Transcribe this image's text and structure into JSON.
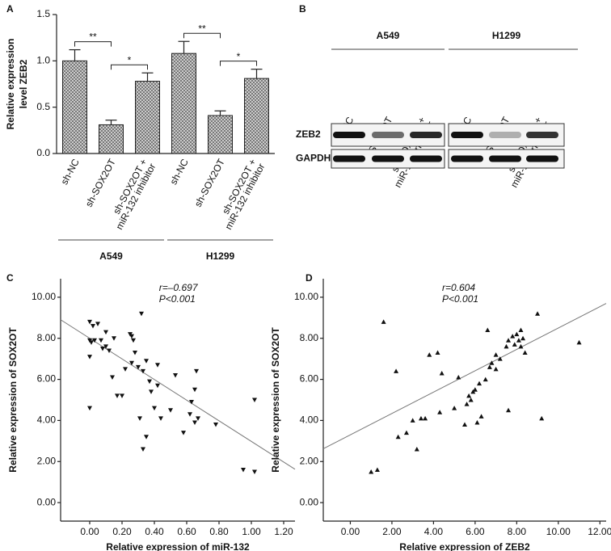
{
  "chart_data": [
    {
      "type": "bar",
      "panel_label": "A",
      "ylabel": [
        "Relative expression",
        "level ZEB2"
      ],
      "categories": [
        [
          "sh-NC"
        ],
        [
          "sh-SOX2OT"
        ],
        [
          "sh-SOX2OT +",
          "miR-132 inhibitor"
        ],
        [
          "sh-NC"
        ],
        [
          "sh-SOX2OT"
        ],
        [
          "sh-SOX2OT +",
          "miR-132 inhibitor"
        ]
      ],
      "groups": [
        "A549",
        "H1299"
      ],
      "values": [
        1.0,
        0.31,
        0.78,
        1.08,
        0.41,
        0.81
      ],
      "error": [
        0.12,
        0.05,
        0.09,
        0.13,
        0.05,
        0.1
      ],
      "brackets": [
        {
          "text": "**",
          "pair": [
            0,
            1
          ]
        },
        {
          "text": "*",
          "pair": [
            1,
            2
          ]
        },
        {
          "text": "**",
          "pair": [
            3,
            4
          ]
        },
        {
          "text": "*",
          "pair": [
            4,
            5
          ]
        }
      ],
      "color": "#bbbbbb",
      "ylim": [
        0,
        1.5
      ],
      "yticks": [
        {
          "value": 0,
          "label": "0.0"
        },
        0.5,
        {
          "value": 1,
          "label": "1.0"
        },
        1.5
      ]
    },
    {
      "type": "scatter",
      "panel_label": "C",
      "marker": "triangle-down",
      "color": "#111111",
      "xlabel": "Relative expression of miR-132",
      "ylabel": "Relative expression of SOX2OT",
      "annotations": [
        "r=–0.697",
        "P<0.001"
      ],
      "x": [
        0.0,
        0.02,
        0.05,
        0.0,
        0.01,
        0.03,
        0.0,
        0.0,
        0.07,
        0.08,
        0.1,
        0.12,
        0.1,
        0.15,
        0.14,
        0.17,
        0.2,
        0.22,
        0.25,
        0.26,
        0.27,
        0.28,
        0.26,
        0.3,
        0.32,
        0.33,
        0.35,
        0.37,
        0.38,
        0.42,
        0.42,
        0.4,
        0.44,
        0.31,
        0.33,
        0.35,
        0.5,
        0.53,
        0.58,
        0.62,
        0.63,
        0.65,
        0.66,
        0.67,
        0.65,
        0.78,
        0.95,
        1.02,
        1.02
      ],
      "y": [
        8.8,
        8.6,
        8.7,
        7.9,
        7.8,
        7.9,
        7.1,
        4.6,
        7.9,
        7.5,
        7.6,
        7.4,
        8.3,
        8.0,
        6.1,
        5.2,
        5.2,
        6.5,
        8.2,
        8.1,
        7.9,
        7.3,
        6.8,
        6.6,
        9.2,
        6.4,
        6.9,
        5.9,
        5.4,
        5.7,
        6.7,
        4.6,
        4.1,
        4.1,
        2.6,
        3.2,
        4.5,
        6.2,
        3.4,
        4.3,
        4.9,
        5.5,
        6.4,
        4.1,
        3.9,
        3.8,
        1.6,
        1.5,
        5.0
      ],
      "fit": {
        "intercept": 8.0,
        "slope": -5.02
      },
      "xlim": [
        -0.18,
        1.27
      ],
      "ylim": [
        -0.9,
        10.9
      ],
      "xticks": [
        {
          "value": 0,
          "label": "0.00"
        },
        {
          "value": 0.2,
          "label": "0.20"
        },
        {
          "value": 0.4,
          "label": "0.40"
        },
        {
          "value": 0.6,
          "label": "0.60"
        },
        {
          "value": 0.8,
          "label": "0.80"
        },
        {
          "value": 1.0,
          "label": "1.00"
        },
        {
          "value": 1.2,
          "label": "1.20"
        }
      ],
      "yticks": [
        {
          "value": 0,
          "label": "0.00"
        },
        {
          "value": 2,
          "label": "2.00"
        },
        {
          "value": 4,
          "label": "4.00"
        },
        {
          "value": 6,
          "label": "6.00"
        },
        {
          "value": 8,
          "label": "8.00"
        },
        {
          "value": 10,
          "label": "10.00"
        }
      ]
    },
    {
      "type": "scatter",
      "panel_label": "D",
      "marker": "triangle-up",
      "color": "#111111",
      "xlabel": "Relative expression of ZEB2",
      "ylabel": "Relative expression of SOX2OT",
      "annotations": [
        "r=0.604",
        "P<0.001"
      ],
      "x": [
        1.0,
        1.3,
        1.6,
        2.2,
        2.3,
        2.7,
        3.0,
        3.2,
        3.4,
        3.6,
        3.8,
        4.2,
        4.4,
        4.3,
        5.0,
        5.2,
        5.5,
        5.6,
        5.7,
        5.8,
        5.9,
        6.0,
        6.1,
        6.2,
        6.3,
        6.5,
        6.6,
        6.7,
        6.8,
        7.0,
        7.0,
        7.2,
        7.5,
        7.6,
        7.6,
        7.8,
        7.9,
        8.0,
        8.1,
        8.2,
        8.3,
        8.2,
        8.4,
        9.0,
        9.2,
        11.0
      ],
      "y": [
        1.5,
        1.6,
        8.8,
        6.4,
        3.2,
        3.4,
        4.0,
        2.6,
        4.1,
        4.1,
        7.2,
        7.3,
        6.3,
        4.4,
        4.6,
        6.1,
        3.8,
        4.8,
        5.2,
        5.0,
        5.4,
        5.5,
        3.9,
        5.8,
        4.2,
        6.0,
        8.4,
        6.6,
        6.8,
        6.5,
        7.2,
        7.0,
        7.6,
        7.9,
        4.5,
        8.1,
        7.7,
        8.2,
        7.9,
        8.4,
        8.0,
        7.6,
        7.3,
        9.2,
        4.1,
        7.8
      ],
      "fit": {
        "intercept": 3.3,
        "slope": 0.52
      },
      "xlim": [
        -1.3,
        12.3
      ],
      "ylim": [
        -0.9,
        10.9
      ],
      "xticks": [
        {
          "value": 0,
          "label": "0.00"
        },
        {
          "value": 2,
          "label": "2.00"
        },
        {
          "value": 4,
          "label": "4.00"
        },
        {
          "value": 6,
          "label": "6.00"
        },
        {
          "value": 8,
          "label": "8.00"
        },
        {
          "value": 10,
          "label": "10.00"
        },
        {
          "value": 12,
          "label": "12.00"
        }
      ],
      "yticks": [
        {
          "value": 0,
          "label": "0.00"
        },
        {
          "value": 2,
          "label": "2.00"
        },
        {
          "value": 4,
          "label": "4.00"
        },
        {
          "value": 6,
          "label": "6.00"
        },
        {
          "value": 8,
          "label": "8.00"
        },
        {
          "value": 10,
          "label": "10.00"
        }
      ]
    }
  ],
  "blot": {
    "panel_label": "B",
    "groups": [
      "A549",
      "H1299"
    ],
    "lanes": [
      [
        "sh-NC"
      ],
      [
        "sh-SOX2OT"
      ],
      [
        "sh-SOX2OT +",
        "miR-132 inhibitor"
      ],
      [
        "sh-NC"
      ],
      [
        "sh-SOX2OT"
      ],
      [
        "sh-SOX2OT +",
        "miR-132 inhibitor"
      ]
    ],
    "rows": [
      "ZEB2",
      "GAPDH"
    ]
  }
}
